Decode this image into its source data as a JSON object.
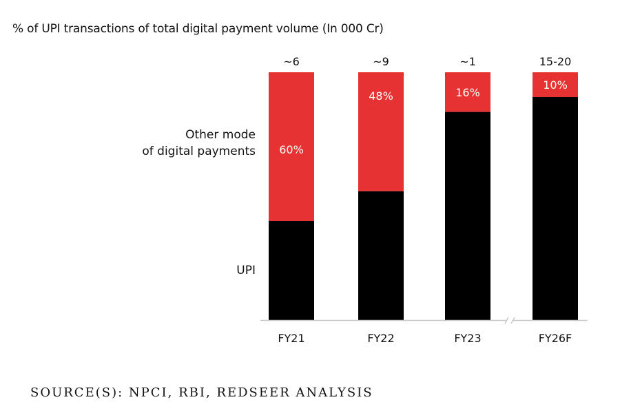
{
  "chart_data": {
    "type": "bar",
    "stacked": true,
    "title": "% of UPI transactions of total digital payment volume (In 000 Cr)",
    "categories": [
      "FY21",
      "FY22",
      "FY23",
      "FY26F"
    ],
    "totals": [
      "~6",
      "~9",
      "~1",
      "15-20"
    ],
    "series": [
      {
        "name": "UPI",
        "color": "#000000",
        "values": [
          40,
          52,
          84,
          90
        ]
      },
      {
        "name": "Other mode of digital payments",
        "name_lines": [
          "Other mode",
          "of digital payments"
        ],
        "color": "#e63232",
        "values": [
          60,
          48,
          16,
          10
        ],
        "labels": [
          "60%",
          "48%",
          "16%",
          "10%"
        ]
      }
    ],
    "ylim": [
      0,
      100
    ],
    "legend": "left",
    "axis_break_before": "FY26F"
  },
  "source": "SOURCE(S): NPCI, RBI, REDSEER ANALYSIS"
}
